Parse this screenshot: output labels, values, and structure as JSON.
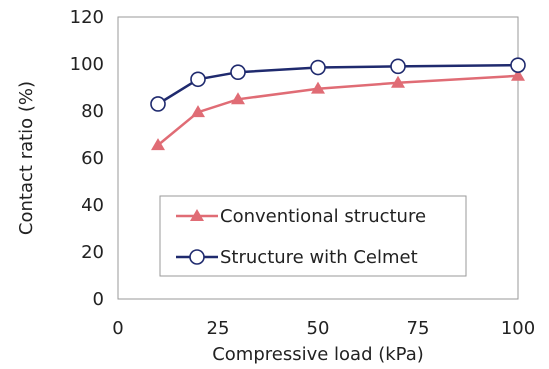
{
  "chart_data": {
    "type": "line",
    "title": "",
    "xlabel": "Compressive load (kPa)",
    "ylabel": "Contact ratio (%)",
    "xlim": [
      0,
      100
    ],
    "ylim": [
      0,
      120
    ],
    "xticks": [
      0,
      25,
      50,
      75,
      100
    ],
    "yticks": [
      0,
      20,
      40,
      60,
      80,
      100,
      120
    ],
    "grid": false,
    "legend_position": "bottom-center",
    "series": [
      {
        "name": "Conventional structure",
        "marker": "triangle",
        "color": "#e06c75",
        "x": [
          10,
          20,
          30,
          50,
          70,
          100
        ],
        "y": [
          65.5,
          79.5,
          85,
          89.5,
          92,
          95
        ]
      },
      {
        "name": "Structure with Celmet",
        "marker": "open-circle",
        "color": "#1f2a6e",
        "x": [
          10,
          20,
          30,
          50,
          70,
          100
        ],
        "y": [
          83,
          93.5,
          96.5,
          98.5,
          99,
          99.5
        ]
      }
    ]
  }
}
